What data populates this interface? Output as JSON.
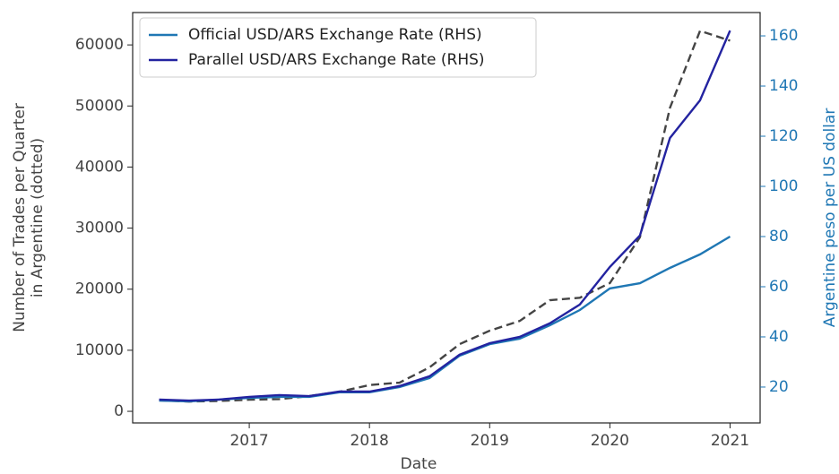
{
  "chart_data": {
    "type": "line",
    "xlabel": "Date",
    "ylabel": [
      "Number of Trades per Quarter",
      "in Argentine  (dotted)"
    ],
    "y2label": "Argentine peso per US dollar",
    "x": [
      2016.25,
      2016.5,
      2016.75,
      2017.0,
      2017.25,
      2017.5,
      2017.75,
      2018.0,
      2018.25,
      2018.5,
      2018.75,
      2019.0,
      2019.25,
      2019.5,
      2019.75,
      2020.0,
      2020.25,
      2020.5,
      2020.75,
      2021.0
    ],
    "series": [
      {
        "color": "#444444",
        "dashed": true,
        "axis": "y",
        "values": [
          1800,
          1600,
          1700,
          1900,
          2000,
          2500,
          3200,
          4300,
          4700,
          7200,
          11000,
          13200,
          14800,
          18200,
          18600,
          21000,
          28500,
          49700,
          62300,
          60700
        ]
      },
      {
        "name": "Official USD/ARS Exchange Rate (RHS)",
        "color": "#1f77b4",
        "axis": "y2",
        "values": [
          14.6,
          14.3,
          15,
          15.7,
          16.1,
          16.1,
          17.9,
          17.9,
          20,
          23.6,
          32.5,
          37.1,
          39.3,
          44.6,
          50.7,
          59.3,
          61.4,
          67.5,
          72.9,
          80
        ]
      },
      {
        "name": "Parallel USD/ARS Exchange Rate (RHS)",
        "color": "#2323a0",
        "axis": "y2",
        "values": [
          15,
          14.6,
          15,
          16.1,
          16.8,
          16.4,
          18.2,
          18.2,
          20.4,
          24.3,
          32.9,
          37.5,
          40,
          45.4,
          52.9,
          67.9,
          80.4,
          119.3,
          134.3,
          162.1
        ]
      }
    ],
    "xlim": [
      2016.03,
      2021.25
    ],
    "xticks": [
      2017,
      2018,
      2019,
      2020,
      2021
    ],
    "ylim": [
      -1900,
      65300
    ],
    "yticks": [
      0,
      10000,
      20000,
      30000,
      40000,
      50000,
      60000
    ],
    "y2lim": [
      5.7,
      169.3
    ],
    "y2ticks": [
      20,
      40,
      60,
      80,
      100,
      120,
      140,
      160
    ],
    "y2color": "#1f77b4",
    "legend": "upper left"
  }
}
